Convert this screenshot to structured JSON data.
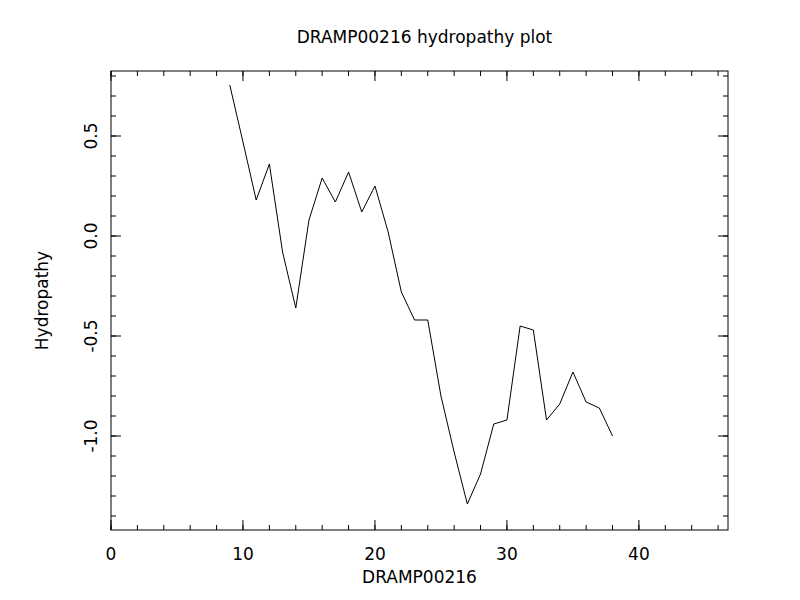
{
  "chart_data": {
    "type": "line",
    "title": "DRAMP00216 hydropathy plot",
    "x_label": "DRAMP00216",
    "y_label": "Hydropathy",
    "x": [
      9,
      10,
      11,
      12,
      13,
      14,
      15,
      16,
      17,
      18,
      19,
      20,
      21,
      22,
      23,
      24,
      25,
      26,
      27,
      28,
      29,
      30,
      31,
      32,
      33,
      34,
      35,
      36,
      37,
      38
    ],
    "values": [
      0.755,
      0.47,
      0.18,
      0.36,
      -0.08,
      -0.36,
      0.08,
      0.29,
      0.17,
      0.32,
      0.12,
      0.25,
      0.02,
      -0.28,
      -0.42,
      -0.42,
      -0.8,
      -1.08,
      -1.34,
      -1.19,
      -0.94,
      -0.92,
      -0.45,
      -0.47,
      -0.92,
      -0.84,
      -0.68,
      -0.83,
      -0.86,
      -1.0
    ],
    "color": "#000000",
    "xlim": [
      0,
      46.75
    ],
    "ylim": [
      -1.47,
      0.825
    ],
    "xticks": [
      0,
      10,
      20,
      30,
      40
    ],
    "yticks": [
      {
        "value": -1,
        "label": "-1.0"
      },
      -0.5,
      {
        "value": 0,
        "label": "0.0"
      },
      0.5
    ],
    "grid": false
  }
}
